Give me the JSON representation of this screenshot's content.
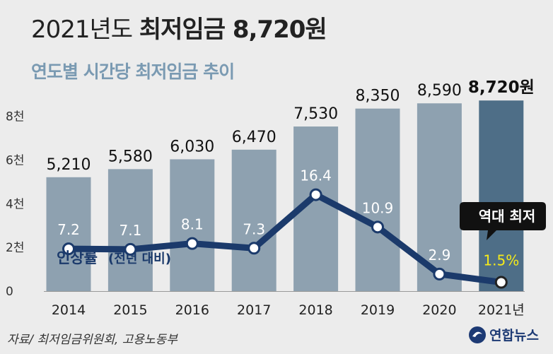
{
  "header": {
    "title_prefix": "2021년도 ",
    "title_bold": "최저임금 8,720원",
    "subtitle": "연도별 시간당 최저임금 추이"
  },
  "footer": {
    "source": "자료/ 최저임금위원회, 고용노동부",
    "logo_text": "연합뉴스"
  },
  "colors": {
    "bar": "#8ea1b0",
    "bar_highlight": "#4e6e87",
    "line": "#1b3a6b",
    "highlight_text": "#f5ea1a",
    "callout_bg": "#111111"
  },
  "chart_data": [
    {
      "type": "bar",
      "categories": [
        "2014",
        "2015",
        "2016",
        "2017",
        "2018",
        "2019",
        "2020",
        "2021년"
      ],
      "values": [
        5210,
        5580,
        6030,
        6470,
        7530,
        8350,
        8590,
        8720
      ],
      "value_labels": [
        "5,210",
        "5,580",
        "6,030",
        "6,470",
        "7,530",
        "8,350",
        "8,590",
        "8,720원"
      ],
      "highlight_index": 7,
      "yticks": [
        0,
        2000,
        4000,
        6000,
        8000
      ],
      "ytick_labels": [
        "0",
        "2천",
        "4천",
        "6천",
        "8천"
      ],
      "ylim": [
        0,
        9600
      ]
    },
    {
      "type": "line",
      "name": "인상률 (전년 대비)",
      "legend_main": "인상률",
      "legend_sub": "(전년 대비)",
      "categories": [
        "2014",
        "2015",
        "2016",
        "2017",
        "2018",
        "2019",
        "2020",
        "2021년"
      ],
      "values": [
        7.2,
        7.1,
        8.1,
        7.3,
        16.4,
        10.9,
        2.9,
        1.5
      ],
      "value_labels": [
        "7.2",
        "7.1",
        "8.1",
        "7.3",
        "16.4",
        "10.9",
        "2.9",
        "1.5%"
      ],
      "ylim": [
        0,
        35.7
      ],
      "annotation": "역대 최저"
    }
  ]
}
